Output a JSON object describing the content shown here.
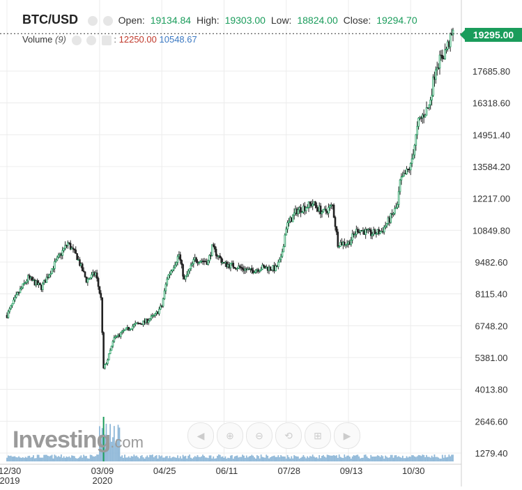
{
  "header": {
    "symbol": "BTC/USD",
    "open_label": "Open:",
    "open": "19134.84",
    "high_label": "High:",
    "high": "19303.00",
    "low_label": "Low:",
    "low": "18824.00",
    "close_label": "Close:",
    "close": "19294.70"
  },
  "volume": {
    "label": "Volume",
    "period": "(9)",
    "value1": "12250.00",
    "value2": "10548.67"
  },
  "price_tag": "19295.00",
  "logo": {
    "brand": "Investing",
    "suffix": ".com"
  },
  "toolbar": [
    {
      "name": "scroll-left-button",
      "glyph": "◀"
    },
    {
      "name": "zoom-in-button",
      "glyph": "⊕"
    },
    {
      "name": "zoom-out-button",
      "glyph": "⊖"
    },
    {
      "name": "zoom-reset-button",
      "glyph": "⟲"
    },
    {
      "name": "fit-button",
      "glyph": "⊞"
    },
    {
      "name": "scroll-right-button",
      "glyph": "▶"
    }
  ],
  "colors": {
    "up": "#1a9c5b",
    "down": "#c0392b",
    "wick": "#222222",
    "grid": "#ececec",
    "volume_bar": "#8fb8d8"
  },
  "chart_data": {
    "type": "candlestick",
    "title": "BTC/USD",
    "y_ticks": [
      "17685.80",
      "16318.60",
      "14951.40",
      "13584.20",
      "12217.00",
      "10849.80",
      "9482.60",
      "8115.40",
      "6748.20",
      "5381.00",
      "4013.80",
      "2646.60",
      "1279.40"
    ],
    "x_ticks": [
      "12/30",
      "03/09",
      "04/25",
      "06/11",
      "07/28",
      "09/13",
      "10/30"
    ],
    "x_ticks_secondary": [
      "2019",
      "2020"
    ],
    "ylim": [
      1279.4,
      19295
    ],
    "grid": true,
    "price_path": [
      [
        "2019-12-30",
        7200
      ],
      [
        "2020-01-07",
        8100
      ],
      [
        "2020-01-15",
        8800
      ],
      [
        "2020-01-25",
        8400
      ],
      [
        "2020-02-05",
        9500
      ],
      [
        "2020-02-14",
        10300
      ],
      [
        "2020-02-21",
        9700
      ],
      [
        "2020-02-28",
        8700
      ],
      [
        "2020-03-06",
        9000
      ],
      [
        "2020-03-10",
        7900
      ],
      [
        "2020-03-12",
        4900
      ],
      [
        "2020-03-15",
        5300
      ],
      [
        "2020-03-20",
        6200
      ],
      [
        "2020-03-27",
        6500
      ],
      [
        "2020-04-05",
        6800
      ],
      [
        "2020-04-12",
        6900
      ],
      [
        "2020-04-20",
        7200
      ],
      [
        "2020-04-25",
        7600
      ],
      [
        "2020-04-29",
        8800
      ],
      [
        "2020-05-08",
        9800
      ],
      [
        "2020-05-12",
        8700
      ],
      [
        "2020-05-20",
        9600
      ],
      [
        "2020-05-30",
        9500
      ],
      [
        "2020-06-02",
        10100
      ],
      [
        "2020-06-11",
        9400
      ],
      [
        "2020-06-20",
        9300
      ],
      [
        "2020-07-01",
        9100
      ],
      [
        "2020-07-10",
        9250
      ],
      [
        "2020-07-20",
        9200
      ],
      [
        "2020-07-24",
        9600
      ],
      [
        "2020-07-28",
        11000
      ],
      [
        "2020-08-05",
        11700
      ],
      [
        "2020-08-17",
        12000
      ],
      [
        "2020-08-25",
        11600
      ],
      [
        "2020-09-01",
        11900
      ],
      [
        "2020-09-05",
        10300
      ],
      [
        "2020-09-13",
        10300
      ],
      [
        "2020-09-20",
        10900
      ],
      [
        "2020-09-30",
        10700
      ],
      [
        "2020-10-08",
        10800
      ],
      [
        "2020-10-15",
        11400
      ],
      [
        "2020-10-20",
        11900
      ],
      [
        "2020-10-22",
        12900
      ],
      [
        "2020-10-30",
        13600
      ],
      [
        "2020-11-05",
        15500
      ],
      [
        "2020-11-13",
        16200
      ],
      [
        "2020-11-18",
        17900
      ],
      [
        "2020-11-24",
        18400
      ],
      [
        "2020-12-01",
        19294.7
      ]
    ]
  }
}
